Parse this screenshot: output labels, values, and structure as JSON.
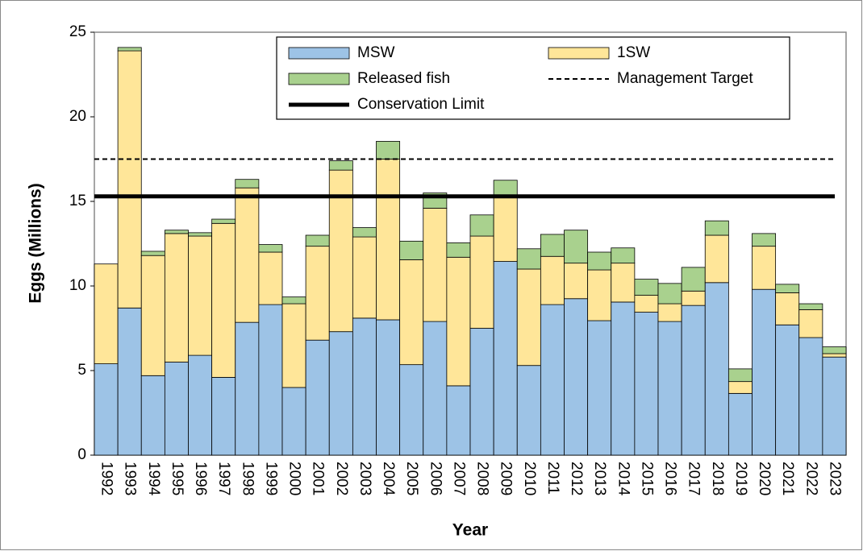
{
  "chart_data": {
    "type": "stacked_bar",
    "y_axis_label": "Eggs (Millions)",
    "x_axis_label": "Year",
    "categories": [
      "1992",
      "1993",
      "1994",
      "1995",
      "1996",
      "1997",
      "1998",
      "1999",
      "2000",
      "2001",
      "2002",
      "2003",
      "2004",
      "2005",
      "2006",
      "2007",
      "2008",
      "2009",
      "2010",
      "2011",
      "2012",
      "2013",
      "2014",
      "2015",
      "2016",
      "2017",
      "2018",
      "2019",
      "2020",
      "2021",
      "2022",
      "2023"
    ],
    "series": [
      {
        "name": "MSW",
        "color": "#9dc3e6",
        "values": [
          5.4,
          8.7,
          4.7,
          5.5,
          5.9,
          4.6,
          7.85,
          8.9,
          4.0,
          6.8,
          7.3,
          8.1,
          8.0,
          5.35,
          7.9,
          4.1,
          7.5,
          11.45,
          5.3,
          8.9,
          9.25,
          7.95,
          9.05,
          8.45,
          7.9,
          8.85,
          10.2,
          3.65,
          9.8,
          7.7,
          6.95,
          5.8
        ]
      },
      {
        "name": "1SW",
        "color": "#ffe699",
        "values": [
          5.9,
          15.2,
          7.1,
          7.6,
          7.05,
          9.1,
          7.95,
          3.1,
          4.95,
          5.55,
          9.55,
          4.8,
          9.5,
          6.2,
          6.7,
          7.6,
          5.45,
          3.85,
          5.7,
          2.85,
          2.1,
          3.0,
          2.3,
          1.0,
          1.05,
          0.85,
          2.8,
          0.7,
          2.55,
          1.9,
          1.65,
          0.2
        ]
      },
      {
        "name": "Released fish",
        "color": "#a9d18e",
        "values": [
          0,
          0.2,
          0.25,
          0.2,
          0.2,
          0.25,
          0.5,
          0.45,
          0.4,
          0.65,
          0.55,
          0.55,
          1.05,
          1.1,
          0.9,
          0.85,
          1.25,
          0.95,
          1.2,
          1.3,
          1.95,
          1.05,
          0.9,
          0.95,
          1.2,
          1.4,
          0.85,
          0.75,
          0.75,
          0.5,
          0.35,
          0.4
        ]
      }
    ],
    "reference_lines": [
      {
        "name": "Management Target",
        "value": 17.5,
        "style": "dashed",
        "color": "#000000"
      },
      {
        "name": "Conservation Limit",
        "value": 15.3,
        "style": "solid",
        "color": "#000000"
      }
    ],
    "ylim": [
      0,
      25
    ],
    "yticks": [
      0,
      5,
      10,
      15,
      20,
      25
    ]
  }
}
